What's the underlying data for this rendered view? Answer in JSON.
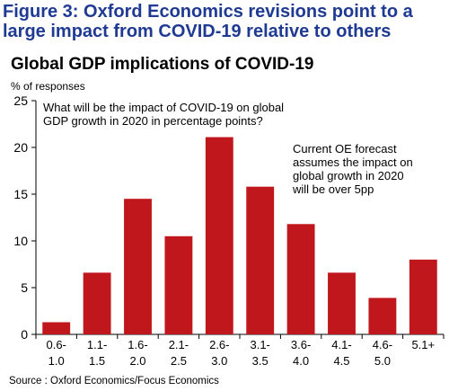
{
  "figure": {
    "title_line1": "Figure 3: Oxford Economics revisions point to a",
    "title_line2": "large impact from COVID-19 relative to others"
  },
  "source": "Source : Oxford Economics/Focus Economics",
  "chart_data": {
    "type": "bar",
    "title": "Global GDP implications of COVID-19",
    "ylabel": "% of responses",
    "xlabel": "",
    "categories": [
      [
        "0.6-",
        "1.0"
      ],
      [
        "1.1-",
        "1.5"
      ],
      [
        "1.6-",
        "2.0"
      ],
      [
        "2.1-",
        "2.5"
      ],
      [
        "2.6-",
        "3.0"
      ],
      [
        "3.1-",
        "3.5"
      ],
      [
        "3.6-",
        "4.0"
      ],
      [
        "4.1-",
        "4.5"
      ],
      [
        "4.6-",
        "5.0"
      ],
      [
        "5.1+",
        ""
      ]
    ],
    "values": [
      1.3,
      6.6,
      14.5,
      10.5,
      21.1,
      15.8,
      11.8,
      6.6,
      3.9,
      8.0
    ],
    "ylim": [
      0,
      25
    ],
    "yticks": [
      0,
      5,
      10,
      15,
      20,
      25
    ],
    "grid": false,
    "bar_color": "#c0171c",
    "annotations": [
      [
        "What will be the impact of COVID-19 on global",
        "GDP growth in 2020 in percentage points?"
      ],
      [
        "Current OE forecast",
        "assumes the impact on",
        "global growth in 2020",
        "will be over 5pp"
      ]
    ]
  }
}
